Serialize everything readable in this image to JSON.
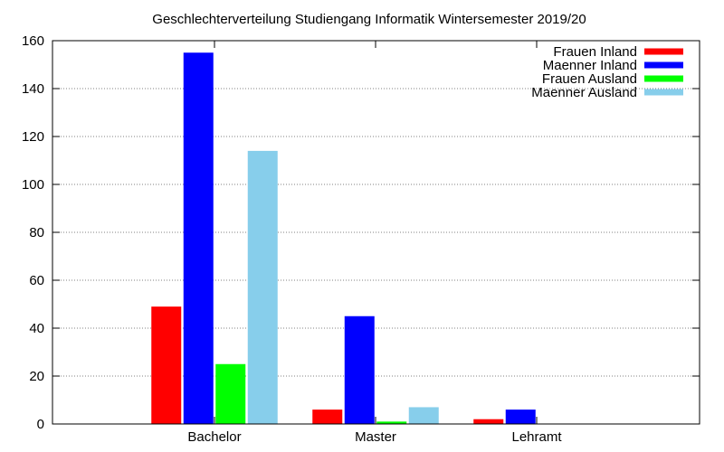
{
  "chart_data": {
    "type": "bar",
    "title": "Geschlechterverteilung Studiengang Informatik Wintersemester 2019/20",
    "xlabel": "",
    "ylabel": "",
    "categories": [
      "Bachelor",
      "Master",
      "Lehramt"
    ],
    "series": [
      {
        "name": "Frauen Inland",
        "color": "#ff0000",
        "values": [
          49,
          6,
          2
        ]
      },
      {
        "name": "Maenner Inland",
        "color": "#0000ff",
        "values": [
          155,
          45,
          6
        ]
      },
      {
        "name": "Frauen Ausland",
        "color": "#00ff00",
        "values": [
          25,
          1,
          0
        ]
      },
      {
        "name": "Maenner Ausland",
        "color": "#87ceeb",
        "values": [
          114,
          7,
          0
        ]
      }
    ],
    "ylim": [
      0,
      160
    ],
    "yticks": [
      "0",
      "20",
      "40",
      "60",
      "80",
      "100",
      "120",
      "140",
      "160"
    ],
    "grid": true,
    "legend_position": "top-right"
  }
}
